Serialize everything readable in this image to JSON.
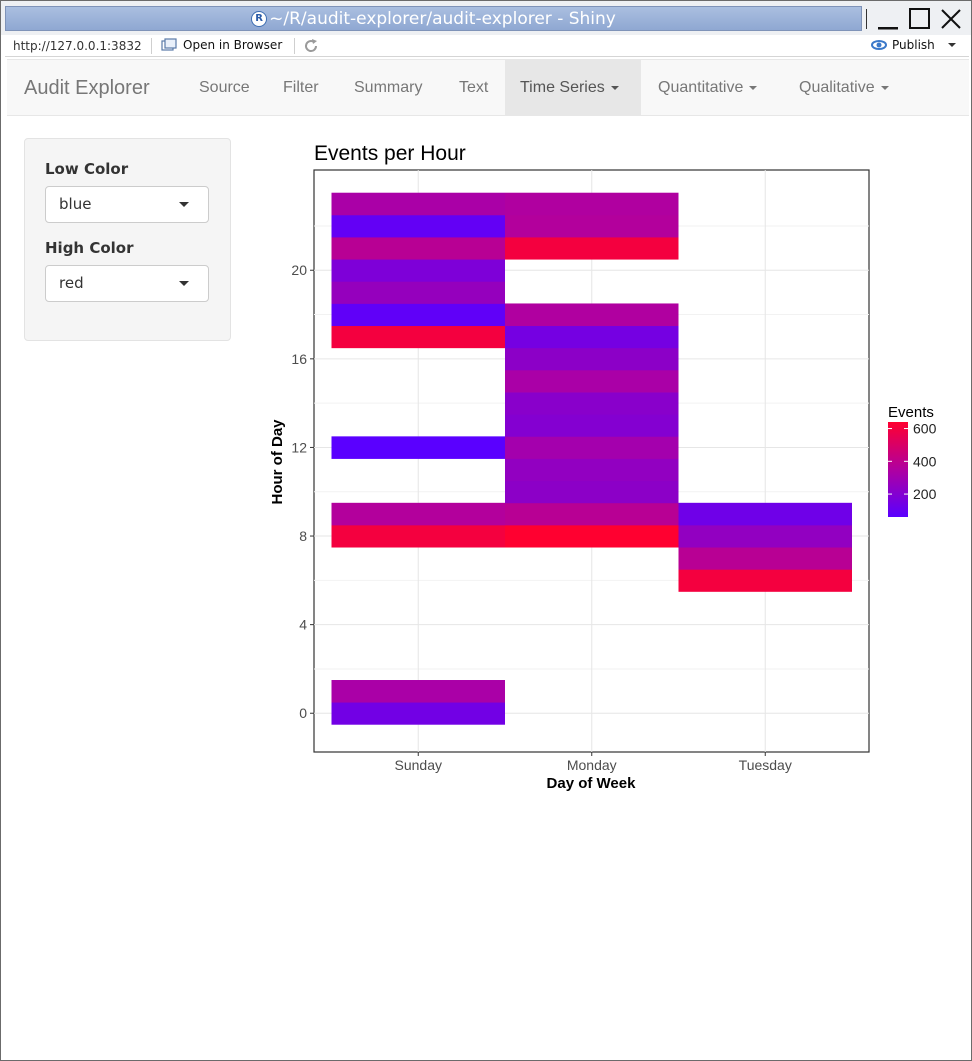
{
  "window": {
    "title": "~/R/audit-explorer/audit-explorer - Shiny"
  },
  "addressbar": {
    "url": "http://127.0.0.1:3832",
    "open_in_browser": "Open in Browser",
    "publish": "Publish"
  },
  "navbar": {
    "brand": "Audit Explorer",
    "items": [
      {
        "label": "Source",
        "dropdown": false,
        "active": false
      },
      {
        "label": "Filter",
        "dropdown": false,
        "active": false
      },
      {
        "label": "Summary",
        "dropdown": false,
        "active": false
      },
      {
        "label": "Text",
        "dropdown": false,
        "active": false
      },
      {
        "label": "Time Series",
        "dropdown": true,
        "active": true
      },
      {
        "label": "Quantitative",
        "dropdown": true,
        "active": false
      },
      {
        "label": "Qualitative",
        "dropdown": true,
        "active": false
      }
    ]
  },
  "sidebar": {
    "low_color_label": "Low Color",
    "low_color_value": "blue",
    "high_color_label": "High Color",
    "high_color_value": "red"
  },
  "chart_data": {
    "type": "heatmap",
    "title": "Events per Hour",
    "xlabel": "Day of Week",
    "ylabel": "Hour of Day",
    "categories": [
      "Sunday",
      "Monday",
      "Tuesday"
    ],
    "y_ticks": [
      0,
      4,
      8,
      12,
      16,
      20
    ],
    "ylim": [
      -1.75,
      24.5
    ],
    "grid": true,
    "legend": {
      "title": "Events",
      "ticks": [
        200,
        400,
        600
      ],
      "position": "right",
      "low_color": "#0000ff",
      "high_color": "#ff0000",
      "range": [
        60,
        640
      ]
    },
    "cells": [
      {
        "day": "Sunday",
        "hour": 0,
        "value": 140
      },
      {
        "day": "Sunday",
        "hour": 1,
        "value": 330
      },
      {
        "day": "Sunday",
        "hour": 8,
        "value": 600
      },
      {
        "day": "Sunday",
        "hour": 9,
        "value": 360
      },
      {
        "day": "Sunday",
        "hour": 12,
        "value": 60
      },
      {
        "day": "Sunday",
        "hour": 17,
        "value": 600
      },
      {
        "day": "Sunday",
        "hour": 18,
        "value": 80
      },
      {
        "day": "Sunday",
        "hour": 19,
        "value": 260
      },
      {
        "day": "Sunday",
        "hour": 20,
        "value": 180
      },
      {
        "day": "Sunday",
        "hour": 21,
        "value": 380
      },
      {
        "day": "Sunday",
        "hour": 22,
        "value": 90
      },
      {
        "day": "Sunday",
        "hour": 23,
        "value": 330
      },
      {
        "day": "Monday",
        "hour": 8,
        "value": 640
      },
      {
        "day": "Monday",
        "hour": 9,
        "value": 380
      },
      {
        "day": "Monday",
        "hour": 10,
        "value": 230
      },
      {
        "day": "Monday",
        "hour": 11,
        "value": 250
      },
      {
        "day": "Monday",
        "hour": 12,
        "value": 310
      },
      {
        "day": "Monday",
        "hour": 13,
        "value": 200
      },
      {
        "day": "Monday",
        "hour": 14,
        "value": 220
      },
      {
        "day": "Monday",
        "hour": 15,
        "value": 330
      },
      {
        "day": "Monday",
        "hour": 16,
        "value": 230
      },
      {
        "day": "Monday",
        "hour": 17,
        "value": 150
      },
      {
        "day": "Monday",
        "hour": 18,
        "value": 350
      },
      {
        "day": "Monday",
        "hour": 21,
        "value": 600
      },
      {
        "day": "Monday",
        "hour": 22,
        "value": 360
      },
      {
        "day": "Monday",
        "hour": 23,
        "value": 350
      },
      {
        "day": "Tuesday",
        "hour": 6,
        "value": 600
      },
      {
        "day": "Tuesday",
        "hour": 7,
        "value": 380
      },
      {
        "day": "Tuesday",
        "hour": 8,
        "value": 250
      },
      {
        "day": "Tuesday",
        "hour": 9,
        "value": 130
      }
    ]
  }
}
